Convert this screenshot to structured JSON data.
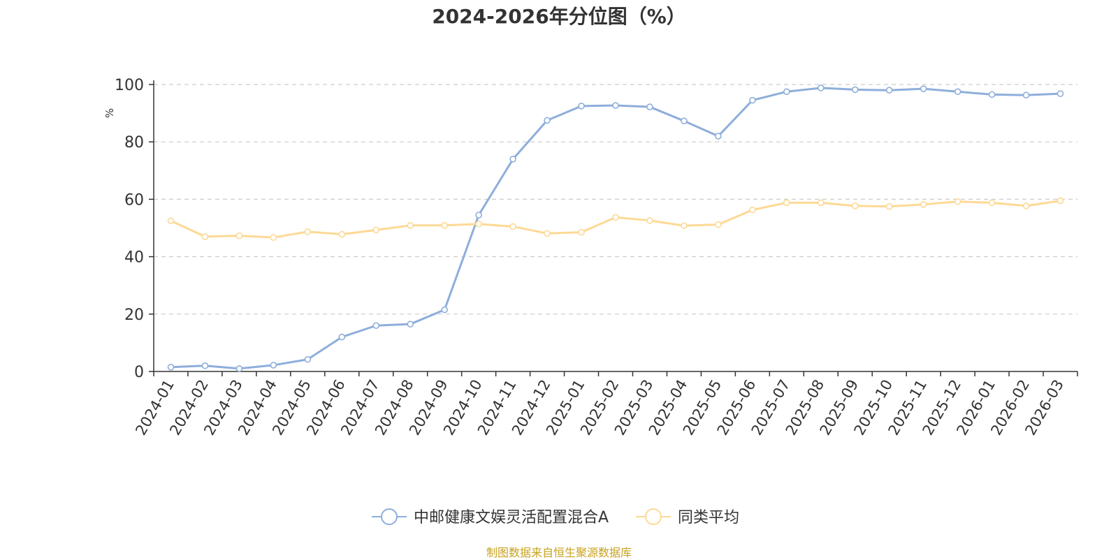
{
  "chart_data": {
    "type": "line",
    "title": "2024-2026年分位图（%）",
    "ylabel": "%",
    "ylim": [
      0,
      100
    ],
    "yticks": [
      0,
      20,
      40,
      60,
      80,
      100
    ],
    "grid": true,
    "legend_position": "bottom",
    "categories": [
      "2024-01",
      "2024-02",
      "2024-03",
      "2024-04",
      "2024-05",
      "2024-06",
      "2024-07",
      "2024-08",
      "2024-09",
      "2024-10",
      "2024-11",
      "2024-12",
      "2025-01",
      "2025-02",
      "2025-03",
      "2025-04",
      "2025-05",
      "2025-06",
      "2025-07",
      "2025-08",
      "2025-09",
      "2025-10",
      "2025-11",
      "2025-12",
      "2026-01",
      "2026-02",
      "2026-03"
    ],
    "series": [
      {
        "name": "中邮健康文娱灵活配置混合A",
        "color": "#8eaedb",
        "values": [
          1.5,
          2.0,
          1.0,
          2.2,
          4.2,
          12.0,
          16.0,
          16.5,
          21.5,
          54.5,
          74.0,
          87.5,
          92.5,
          92.7,
          92.2,
          87.3,
          82.0,
          94.5,
          97.5,
          98.8,
          98.2,
          98.0,
          98.5,
          97.5,
          96.5,
          96.3,
          96.8
        ]
      },
      {
        "name": "同类平均",
        "color": "#fdd995",
        "values": [
          52.5,
          47.0,
          47.3,
          46.7,
          48.7,
          47.8,
          49.3,
          50.9,
          50.9,
          51.4,
          50.5,
          48.1,
          48.5,
          53.7,
          52.6,
          50.8,
          51.2,
          56.3,
          58.8,
          58.8,
          57.7,
          57.5,
          58.2,
          59.2,
          58.8,
          57.7,
          59.5
        ]
      }
    ]
  },
  "footer": {
    "source": "制图数据来自恒生聚源数据库"
  }
}
